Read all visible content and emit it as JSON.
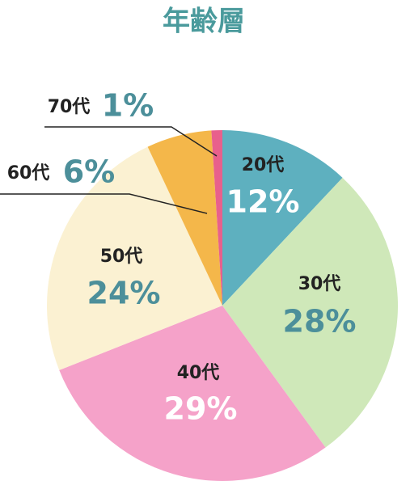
{
  "chart_data": {
    "type": "pie",
    "title": "年齢層",
    "categories": [
      "20代",
      "30代",
      "40代",
      "50代",
      "60代",
      "70代"
    ],
    "values": [
      12,
      28,
      29,
      24,
      6,
      1
    ],
    "value_labels": [
      "12%",
      "28%",
      "29%",
      "24%",
      "6%",
      "1%"
    ],
    "colors": [
      "#5eb0bf",
      "#cfe8b9",
      "#f5a2c9",
      "#fbf1d2",
      "#f4b74a",
      "#e8608c"
    ],
    "value_label_colors": [
      "#ffffff",
      "#4c8f9a",
      "#ffffff",
      "#4c8f9a",
      "#4c8f9a",
      "#4c8f9a"
    ]
  }
}
